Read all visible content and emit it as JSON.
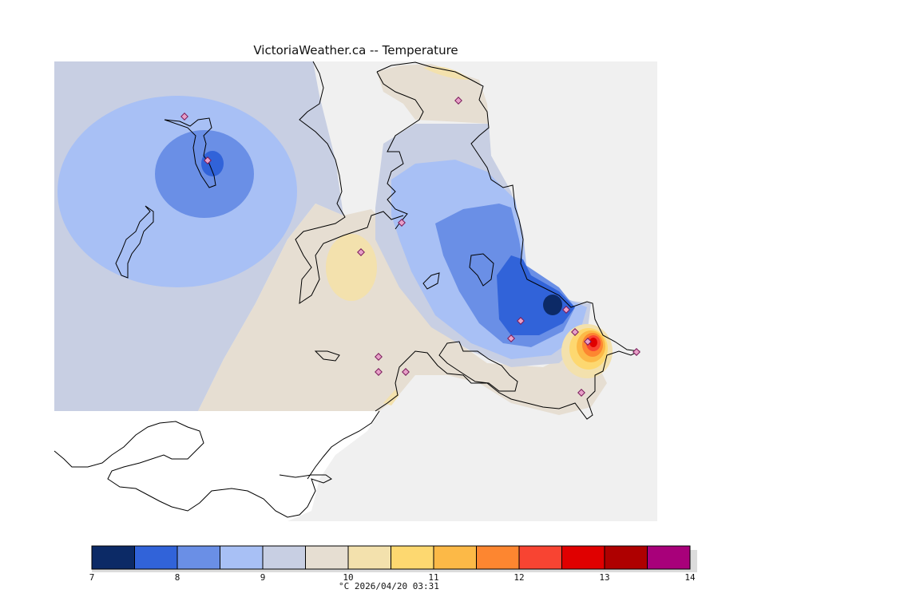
{
  "header": {
    "title": "VictoriaWeather.ca -- Temperature"
  },
  "legend": {
    "caption": "°C 2026/04/20 03:31",
    "tick_labels": [
      "7",
      "8",
      "9",
      "10",
      "11",
      "12",
      "13",
      "14"
    ],
    "bins": [
      {
        "from": 7.0,
        "to": 7.5,
        "color": "#0c2a66"
      },
      {
        "from": 7.5,
        "to": 8.0,
        "color": "#3163d9"
      },
      {
        "from": 8.0,
        "to": 8.5,
        "color": "#6a8fe6"
      },
      {
        "from": 8.5,
        "to": 9.0,
        "color": "#a8c0f5"
      },
      {
        "from": 9.0,
        "to": 9.5,
        "color": "#c8cfe3"
      },
      {
        "from": 9.5,
        "to": 10.0,
        "color": "#e6ded2"
      },
      {
        "from": 10.0,
        "to": 10.5,
        "color": "#f3e1ad"
      },
      {
        "from": 10.5,
        "to": 11.0,
        "color": "#fdd870"
      },
      {
        "from": 11.0,
        "to": 11.5,
        "color": "#fcb947"
      },
      {
        "from": 11.5,
        "to": 12.0,
        "color": "#fd8630"
      },
      {
        "from": 12.0,
        "to": 12.5,
        "color": "#f84432"
      },
      {
        "from": 12.5,
        "to": 13.0,
        "color": "#e00000"
      },
      {
        "from": 13.0,
        "to": 13.5,
        "color": "#ae0000"
      },
      {
        "from": 13.5,
        "to": 14.0,
        "color": "#a8007a"
      }
    ]
  },
  "map": {
    "no_data_color": "#f0f0f0",
    "station_marker_icon": "diamond-station-icon",
    "station_count": 15
  }
}
